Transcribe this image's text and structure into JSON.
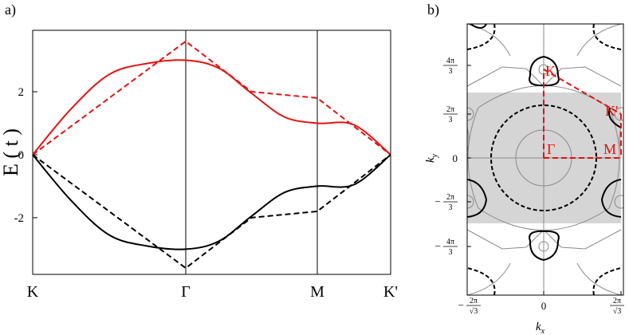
{
  "chart_data": [
    {
      "panel_label": "a)",
      "type": "line",
      "ylabel": "E ( t )",
      "xlabel": "",
      "ylim": [
        -3.8,
        3.95
      ],
      "x_ticks": [
        {
          "label": "K",
          "k": 0
        },
        {
          "label": "Γ",
          "k": 1
        },
        {
          "label": "M",
          "k": 2
        },
        {
          "label": "K'",
          "k": 2.5
        }
      ],
      "y_ticks": [
        {
          "value": 2,
          "label": "2"
        },
        {
          "value": 0,
          "label": "0"
        },
        {
          "value": -2,
          "label": "-2"
        }
      ],
      "grid": "vertical lines at Γ and M",
      "series": [
        {
          "color": "#e81010",
          "style": "solid",
          "x": [
            0,
            0.25,
            0.5,
            0.75,
            1,
            1.25,
            1.5,
            1.75,
            2,
            2.25,
            2.5
          ],
          "values": [
            0,
            1.45,
            2.55,
            2.9,
            3.0,
            2.75,
            1.95,
            1.2,
            1.0,
            0.95,
            0
          ]
        },
        {
          "color": "#e81010",
          "style": "dashed",
          "x": [
            0,
            1,
            1.5,
            2,
            2.5
          ],
          "values": [
            0,
            3.6,
            2.0,
            1.8,
            0
          ]
        },
        {
          "color": "#000000",
          "style": "solid",
          "x": [
            0,
            0.25,
            0.5,
            0.75,
            1,
            1.25,
            1.5,
            1.75,
            2,
            2.25,
            2.5
          ],
          "values": [
            0,
            -1.45,
            -2.55,
            -2.9,
            -3.0,
            -2.75,
            -1.95,
            -1.2,
            -1.0,
            -0.95,
            0
          ]
        },
        {
          "color": "#000000",
          "style": "dashed",
          "x": [
            0,
            1,
            1.5,
            2,
            2.5
          ],
          "values": [
            0,
            -3.6,
            -2.0,
            -1.8,
            0
          ]
        }
      ]
    },
    {
      "panel_label": "b)",
      "type": "contour",
      "xlabel_main": "k",
      "xlabel_sub": "x",
      "ylabel_main": "k",
      "ylabel_sub": "y",
      "x_ticks": [
        {
          "num": "2π",
          "den": "√3",
          "neg": true
        },
        {
          "label": "0"
        },
        {
          "num": "2π",
          "den": "√3",
          "neg": false
        }
      ],
      "y_ticks": [
        {
          "num": "4π",
          "den": "3",
          "neg": false
        },
        {
          "num": "2π",
          "den": "3",
          "neg": false
        },
        {
          "label": "0"
        },
        {
          "num": "2π",
          "den": "3",
          "neg": true
        },
        {
          "num": "4π",
          "den": "3",
          "neg": true
        }
      ],
      "shaded_region": "first Brillouin zone",
      "path_color": "#e81010",
      "point_labels": [
        "K",
        "K'",
        "Γ",
        "M"
      ]
    }
  ]
}
